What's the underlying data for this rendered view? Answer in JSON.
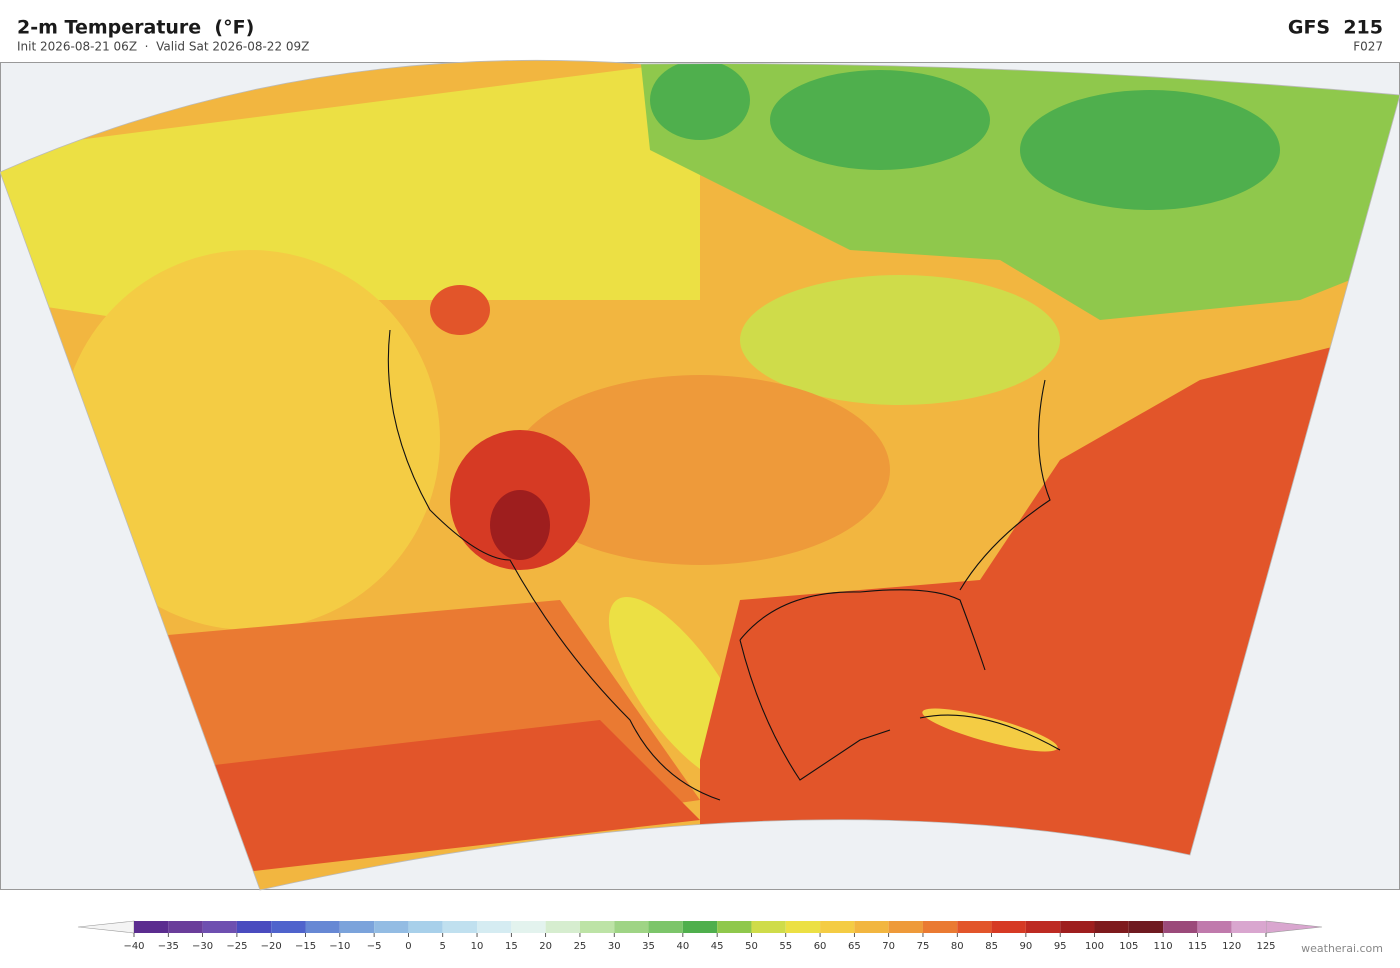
{
  "header": {
    "title": "2-m Temperature  (°F)",
    "subtitle": "Init 2026-08-21 06Z  ·  Valid Sat 2026-08-22 09Z",
    "model": "GFS  215",
    "forecast_hour": "F027"
  },
  "colorbar": {
    "ticks": [
      {
        "value": -40,
        "label": "−40"
      },
      {
        "value": -35,
        "label": "−35"
      },
      {
        "value": -30,
        "label": "−30"
      },
      {
        "value": -25,
        "label": "−25"
      },
      {
        "value": -20,
        "label": "−20"
      },
      {
        "value": -15,
        "label": "−15"
      },
      {
        "value": -10,
        "label": "−10"
      },
      {
        "value": -5,
        "label": "−5"
      },
      0,
      5,
      10,
      15,
      20,
      25,
      30,
      35,
      40,
      45,
      50,
      55,
      60,
      65,
      70,
      75,
      80,
      85,
      90,
      95,
      100,
      105,
      110,
      115,
      120,
      125
    ],
    "colors": [
      "#5b2c8f",
      "#6a3d9a",
      "#6e4fb0",
      "#4a4bbf",
      "#4f63cc",
      "#6788d4",
      "#7ba3db",
      "#93bce3",
      "#a8d0ea",
      "#c0e0ef",
      "#d5ecf2",
      "#e3f3ee",
      "#d6edcf",
      "#bde3a6",
      "#9fd485",
      "#7cc56a",
      "#4faf4d",
      "#8fc84c",
      "#cfdc4a",
      "#ece044",
      "#f4cc44",
      "#f2b640",
      "#ee9a3a",
      "#ea7a32",
      "#e2552a",
      "#d63a24",
      "#bd2a22",
      "#9e1e1e",
      "#7e1a1d",
      "#6f1a20",
      "#9b4a7a",
      "#c07aac",
      "#d9a6cf"
    ],
    "extend_colors": [
      "#f4f4f4",
      "#d9a6cf"
    ]
  },
  "credit": "weatherai.com"
}
